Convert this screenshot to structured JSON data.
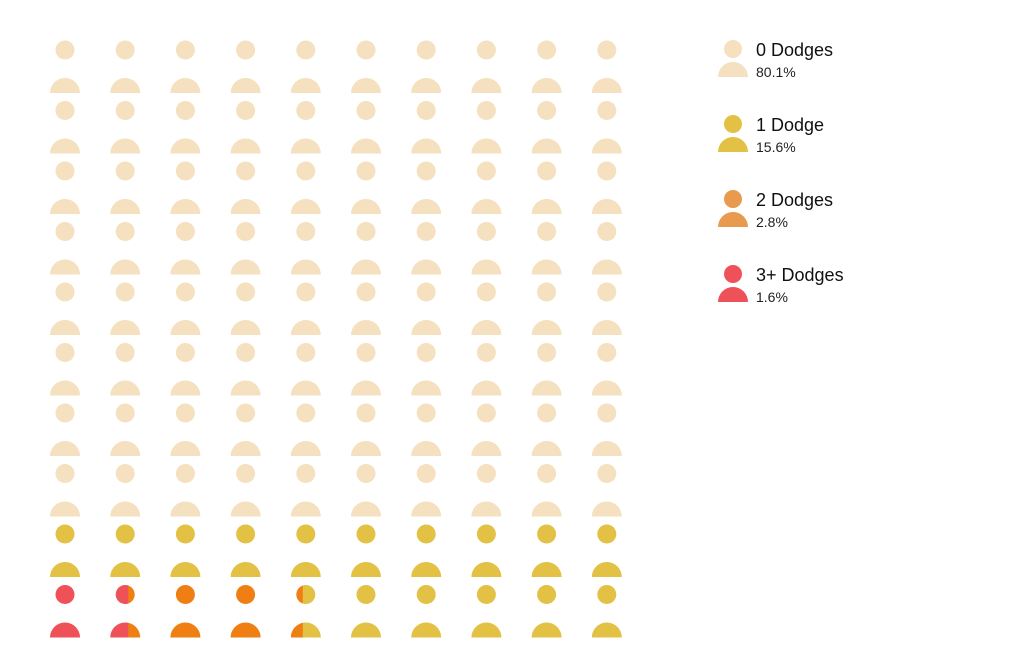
{
  "chart_data": {
    "type": "waffle",
    "title": "",
    "total_icons": 100,
    "categories": [
      {
        "label": "0 Dodges",
        "percent_label": "80.1%",
        "value": 80.1,
        "color": "#f5e0bf"
      },
      {
        "label": "1 Dodge",
        "percent_label": "15.6%",
        "value": 15.6,
        "color": "#e3c144"
      },
      {
        "label": "2 Dodges",
        "percent_label": "2.8%",
        "value": 2.8,
        "color": "#e89a4e"
      },
      {
        "label": "3+ Dodges",
        "percent_label": "1.6%",
        "value": 1.6,
        "color": "#ee5258"
      }
    ],
    "grid_colors": {
      "light": "#f5e0bf",
      "one": "#e3c144",
      "two": "#ef7e13",
      "three": "#ee5258"
    },
    "legend_position": "right"
  }
}
